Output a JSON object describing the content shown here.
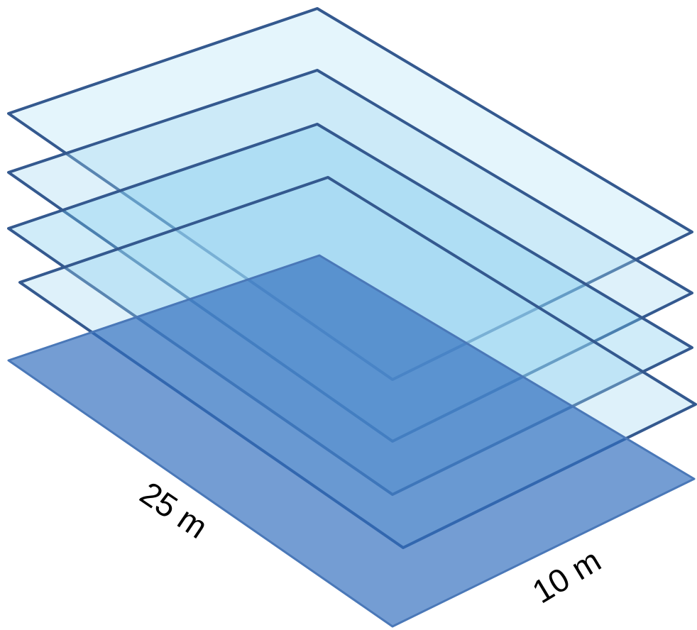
{
  "labels": {
    "length": "25 m",
    "width": "10 m"
  }
}
